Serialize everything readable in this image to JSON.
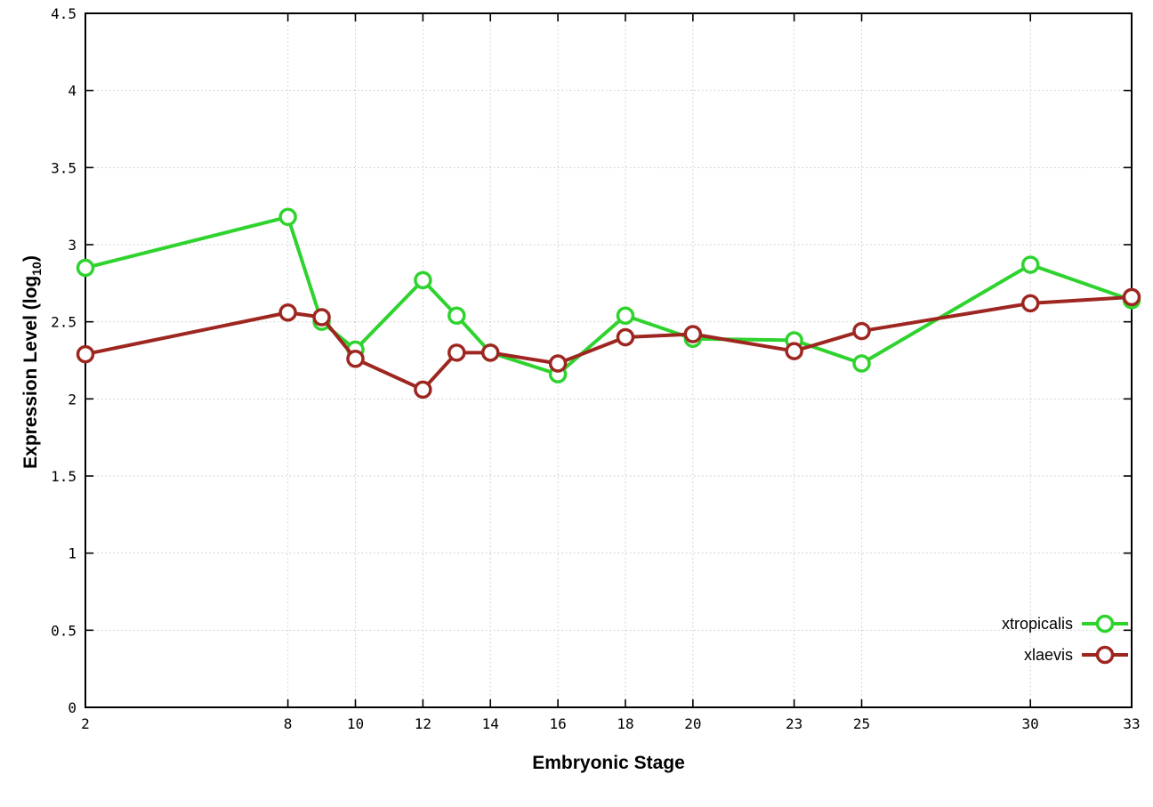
{
  "chart_data": {
    "type": "line",
    "title": "",
    "xlabel": "Embryonic Stage",
    "ylabel_main": "Expression Level (log",
    "ylabel_sub": "10",
    "ylabel_close": ")",
    "xlim": [
      2,
      33
    ],
    "ylim": [
      0,
      4.5
    ],
    "x_ticks": [
      2,
      8,
      10,
      12,
      14,
      16,
      18,
      20,
      23,
      25,
      30,
      33
    ],
    "y_ticks": [
      0,
      0.5,
      1,
      1.5,
      2,
      2.5,
      3,
      3.5,
      4,
      4.5
    ],
    "grid": true,
    "legend_position": "bottom-right",
    "x": [
      2,
      8,
      9,
      10,
      12,
      13,
      14,
      16,
      18,
      20,
      23,
      25,
      30,
      33
    ],
    "series": [
      {
        "name": "xtropicalis",
        "color": "#2ed32e",
        "values": [
          2.85,
          3.18,
          2.5,
          2.32,
          2.77,
          2.54,
          2.3,
          2.16,
          2.54,
          2.39,
          2.38,
          2.23,
          2.87,
          2.64
        ]
      },
      {
        "name": "xlaevis",
        "color": "#9e2620",
        "values": [
          2.29,
          2.56,
          2.53,
          2.26,
          2.06,
          2.3,
          2.3,
          2.23,
          2.4,
          2.42,
          2.31,
          2.44,
          2.62,
          2.66
        ]
      }
    ]
  },
  "style": {
    "grid_color": "#c8c8c8",
    "axis_color": "#000000",
    "background": "#ffffff"
  }
}
